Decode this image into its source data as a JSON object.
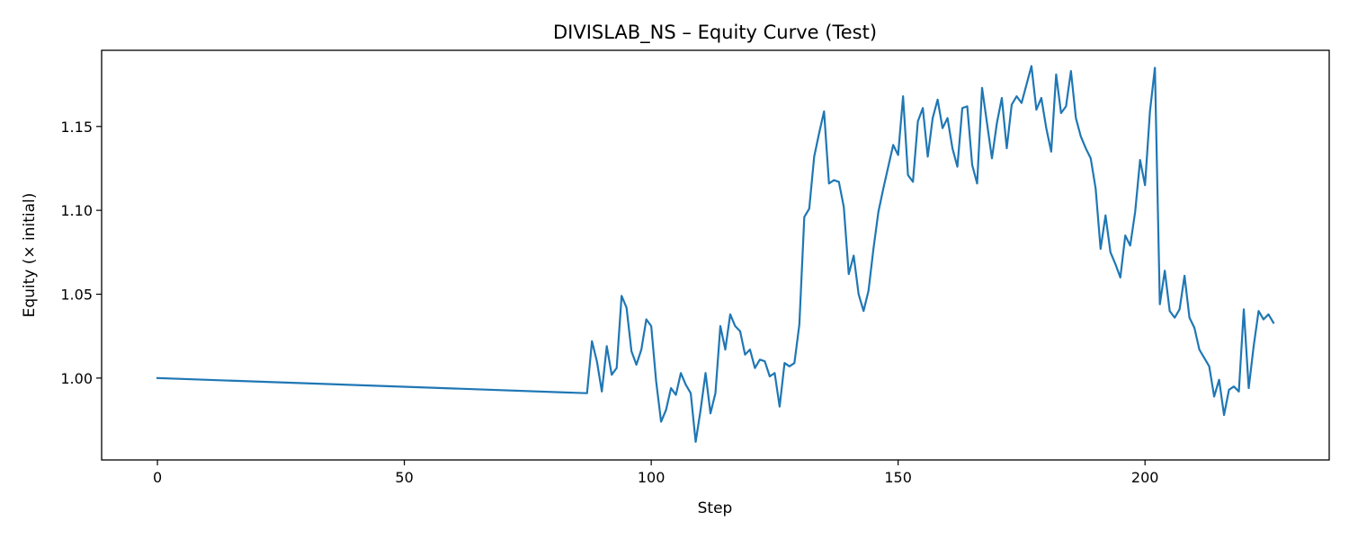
{
  "chart_data": {
    "type": "line",
    "title": "DIVISLAB_NS – Equity Curve (Test)",
    "xlabel": "Step",
    "ylabel": "Equity (× initial)",
    "xlim": [
      -11.3,
      237.3
    ],
    "ylim": [
      0.9512,
      1.1954
    ],
    "xticks": [
      0,
      50,
      100,
      150,
      200
    ],
    "yticks": [
      1.0,
      1.05,
      1.1,
      1.15
    ],
    "grid": false,
    "legend": "none",
    "series": [
      {
        "color": "#1f77b4",
        "x": [
          0,
          87,
          88,
          89,
          90,
          91,
          92,
          93,
          94,
          95,
          96,
          97,
          98,
          99,
          100,
          101,
          102,
          103,
          104,
          105,
          106,
          107,
          108,
          109,
          110,
          111,
          112,
          113,
          114,
          115,
          116,
          117,
          118,
          119,
          120,
          121,
          122,
          123,
          124,
          125,
          126,
          127,
          128,
          129,
          130,
          131,
          132,
          133,
          134,
          135,
          136,
          137,
          138,
          139,
          140,
          141,
          142,
          143,
          144,
          145,
          146,
          147,
          148,
          149,
          150,
          151,
          152,
          153,
          154,
          155,
          156,
          157,
          158,
          159,
          160,
          161,
          162,
          163,
          164,
          165,
          166,
          167,
          168,
          169,
          170,
          171,
          172,
          173,
          174,
          175,
          176,
          177,
          178,
          179,
          180,
          181,
          182,
          183,
          184,
          185,
          186,
          187,
          188,
          189,
          190,
          191,
          192,
          193,
          194,
          195,
          196,
          197,
          198,
          199,
          200,
          201,
          202,
          203,
          204,
          205,
          206,
          207,
          208,
          209,
          210,
          211,
          212,
          213,
          214,
          215,
          216,
          217,
          218,
          219,
          220,
          221,
          222,
          223,
          224,
          225,
          226
        ],
        "y": [
          1.0,
          0.991,
          1.022,
          1.01,
          0.992,
          1.019,
          1.002,
          1.006,
          1.049,
          1.042,
          1.016,
          1.008,
          1.017,
          1.035,
          1.031,
          0.998,
          0.974,
          0.981,
          0.994,
          0.99,
          1.003,
          0.996,
          0.991,
          0.962,
          0.981,
          1.003,
          0.979,
          0.991,
          1.031,
          1.017,
          1.038,
          1.031,
          1.028,
          1.014,
          1.017,
          1.006,
          1.011,
          1.01,
          1.001,
          1.003,
          0.983,
          1.009,
          1.007,
          1.009,
          1.032,
          1.096,
          1.101,
          1.132,
          1.146,
          1.159,
          1.116,
          1.118,
          1.117,
          1.102,
          1.062,
          1.073,
          1.05,
          1.04,
          1.052,
          1.077,
          1.099,
          1.113,
          1.126,
          1.139,
          1.133,
          1.168,
          1.121,
          1.117,
          1.153,
          1.161,
          1.132,
          1.155,
          1.166,
          1.149,
          1.155,
          1.137,
          1.126,
          1.161,
          1.162,
          1.127,
          1.116,
          1.173,
          1.152,
          1.131,
          1.152,
          1.167,
          1.137,
          1.163,
          1.168,
          1.164,
          1.175,
          1.186,
          1.16,
          1.167,
          1.149,
          1.135,
          1.181,
          1.158,
          1.162,
          1.183,
          1.155,
          1.144,
          1.137,
          1.131,
          1.113,
          1.077,
          1.097,
          1.075,
          1.068,
          1.06,
          1.085,
          1.079,
          1.099,
          1.13,
          1.115,
          1.159,
          1.185,
          1.044,
          1.064,
          1.04,
          1.036,
          1.041,
          1.061,
          1.036,
          1.03,
          1.017,
          1.012,
          1.007,
          0.989,
          0.999,
          0.978,
          0.993,
          0.995,
          0.992,
          1.041,
          0.994,
          1.019,
          1.04,
          1.035,
          1.038,
          1.033
        ]
      }
    ]
  }
}
